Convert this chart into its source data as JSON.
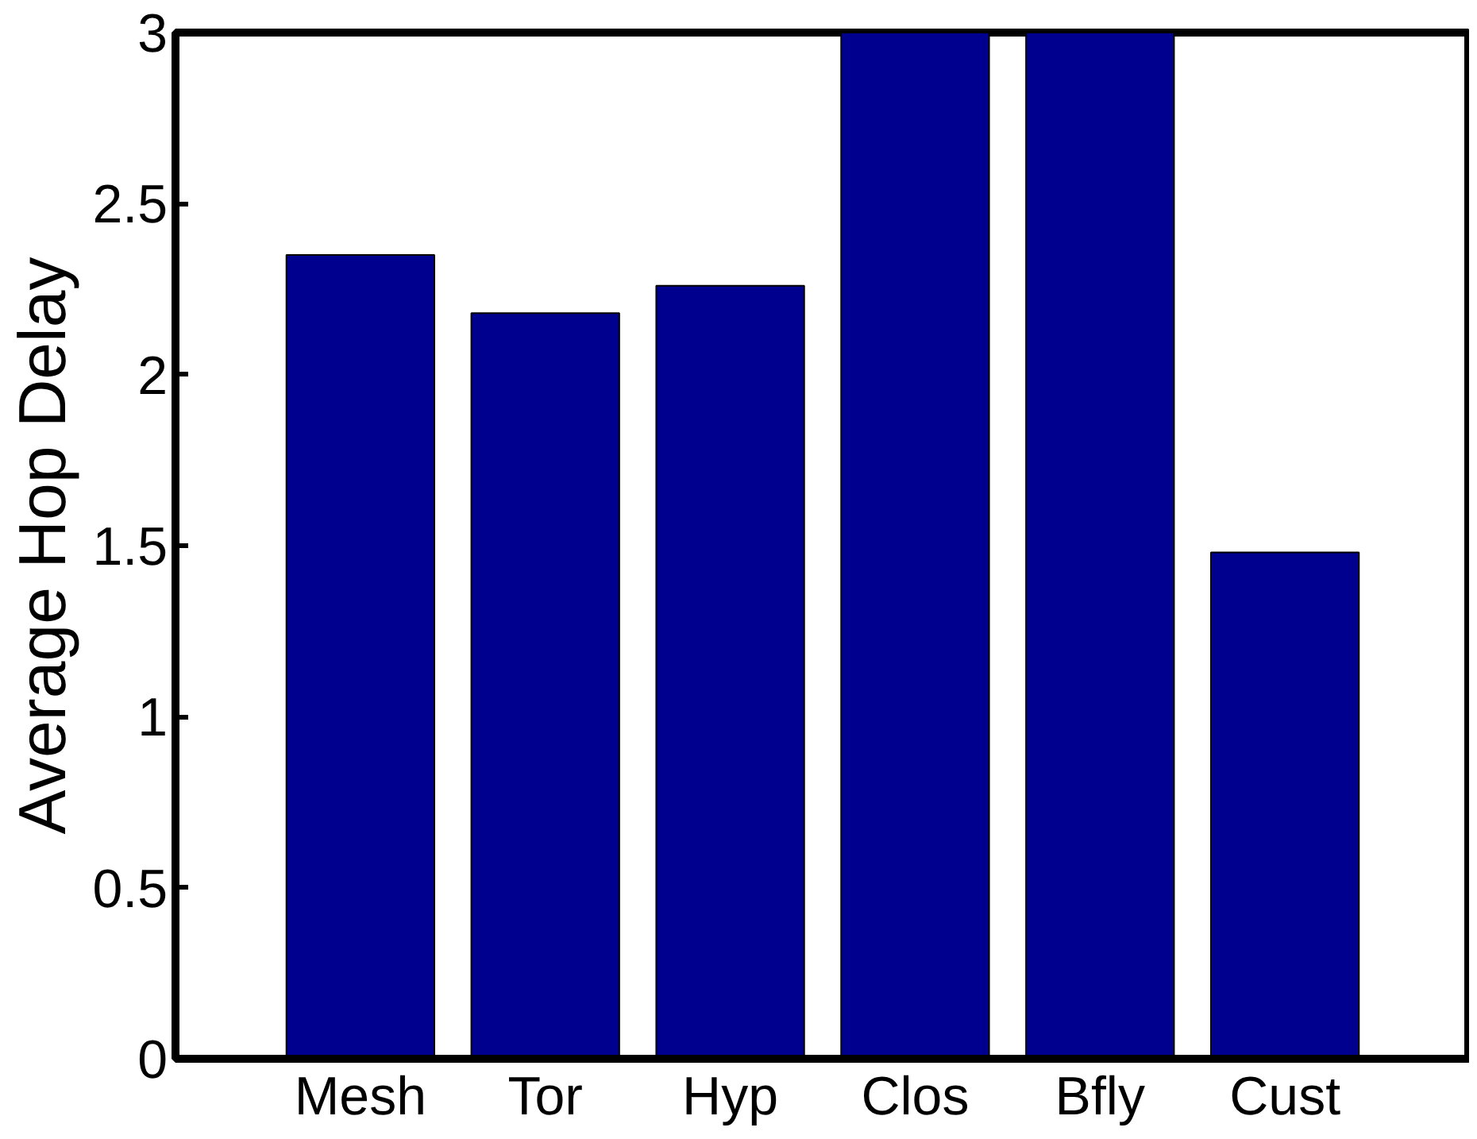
{
  "chart_data": {
    "type": "bar",
    "ylabel": "Average Hop Delay",
    "categories": [
      "Mesh",
      "Tor",
      "Hyp",
      "Clos",
      "Bfly",
      "Cust"
    ],
    "values": [
      2.35,
      2.18,
      2.26,
      3,
      3,
      1.48
    ],
    "color": "#00008f",
    "ylim": [
      0,
      3
    ],
    "yticks": [
      0,
      0.5,
      1,
      1.5,
      2,
      2.5,
      3
    ],
    "grid": false
  }
}
